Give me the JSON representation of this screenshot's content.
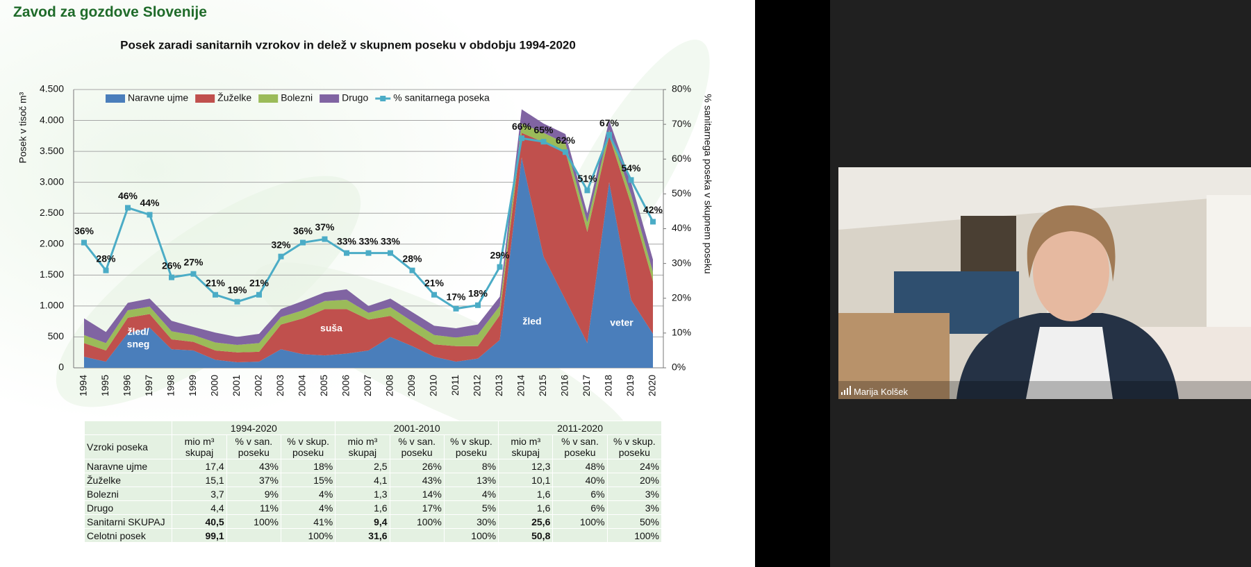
{
  "slide": {
    "header": "Zavod za gozdove Slovenije",
    "table": {
      "groups": [
        "1994-2020",
        "2001-2010",
        "2011-2020"
      ],
      "columns": [
        "Vzroki poseka",
        "mio m³ skupaj",
        "% v san. poseku",
        "% v skup. poseku"
      ],
      "rows": [
        [
          "Naravne ujme",
          "17,4",
          "43%",
          "18%",
          "2,5",
          "26%",
          "8%",
          "12,3",
          "48%",
          "24%"
        ],
        [
          "Žuželke",
          "15,1",
          "37%",
          "15%",
          "4,1",
          "43%",
          "13%",
          "10,1",
          "40%",
          "20%"
        ],
        [
          "Bolezni",
          "3,7",
          "9%",
          "4%",
          "1,3",
          "14%",
          "4%",
          "1,6",
          "6%",
          "3%"
        ],
        [
          "Drugo",
          "4,4",
          "11%",
          "4%",
          "1,6",
          "17%",
          "5%",
          "1,6",
          "6%",
          "3%"
        ],
        [
          "Sanitarni SKUPAJ",
          "40,5",
          "100%",
          "41%",
          "9,4",
          "100%",
          "30%",
          "25,6",
          "100%",
          "50%"
        ],
        [
          "Celotni posek",
          "99,1",
          null,
          "100%",
          "31,6",
          null,
          "100%",
          "50,8",
          null,
          "100%"
        ]
      ]
    }
  },
  "participant": {
    "name": "Marija Kolšek"
  },
  "chart_data": {
    "type": "area",
    "stacked": true,
    "title": "Posek zaradi sanitarnih vzrokov in delež v skupnem poseku v obdobju 1994-2020",
    "y_label": "Posek v tisoč m³",
    "y2_label": "% sanitarnega poseka v skupnem poseku",
    "categories": [
      "1994",
      "1995",
      "1996",
      "1997",
      "1998",
      "1999",
      "2000",
      "2001",
      "2002",
      "2003",
      "2004",
      "2005",
      "2006",
      "2007",
      "2008",
      "2009",
      "2010",
      "2011",
      "2012",
      "2013",
      "2014",
      "2015",
      "2016",
      "2017",
      "2018",
      "2019",
      "2020"
    ],
    "series": [
      {
        "name": "Naravne ujme",
        "color": "#4a7ebb",
        "values": [
          180,
          100,
          560,
          650,
          300,
          280,
          130,
          90,
          100,
          300,
          220,
          200,
          230,
          280,
          500,
          350,
          180,
          100,
          150,
          450,
          3400,
          1800,
          1100,
          400,
          3000,
          1100,
          550
        ]
      },
      {
        "name": "Žuželke",
        "color": "#c0504d",
        "values": [
          220,
          180,
          250,
          220,
          160,
          140,
          150,
          160,
          160,
          400,
          580,
          750,
          720,
          500,
          340,
          250,
          200,
          250,
          200,
          400,
          400,
          1850,
          2400,
          1800,
          750,
          1550,
          850
        ]
      },
      {
        "name": "Bolezni",
        "color": "#9bbb59",
        "values": [
          130,
          120,
          120,
          120,
          130,
          110,
          130,
          120,
          140,
          120,
          130,
          130,
          150,
          110,
          140,
          150,
          150,
          140,
          190,
          150,
          150,
          150,
          130,
          150,
          100,
          150,
          150
        ]
      },
      {
        "name": "Drugo",
        "color": "#8064a2",
        "values": [
          270,
          180,
          120,
          130,
          170,
          130,
          160,
          130,
          150,
          130,
          150,
          140,
          170,
          110,
          140,
          150,
          150,
          150,
          160,
          150,
          230,
          150,
          150,
          150,
          150,
          200,
          200
        ]
      },
      {
        "name": "% sanitarnega poseka",
        "color": "#4bacc6",
        "type": "line",
        "axis": "y2",
        "values": [
          36,
          28,
          46,
          44,
          26,
          27,
          21,
          19,
          21,
          32,
          36,
          37,
          33,
          33,
          33,
          28,
          21,
          17,
          18,
          29,
          66,
          65,
          62,
          51,
          67,
          54,
          42
        ],
        "value_labels": [
          "36%",
          "28%",
          "46%",
          "44%",
          "26%",
          "27%",
          "21%",
          "19%",
          "21%",
          "32%",
          "36%",
          "37%",
          "33%",
          "33%",
          "33%",
          "28%",
          "21%",
          "17%",
          "18%",
          "29%",
          "66%",
          "65%",
          "62%",
          "51%",
          "67%",
          "54%",
          "42%"
        ]
      }
    ],
    "ylim": [
      0,
      4500
    ],
    "yticks": [
      0,
      500,
      {
        "value": 1000,
        "label": "1.000"
      },
      {
        "value": 1500,
        "label": "1.500"
      },
      {
        "value": 2000,
        "label": "2.000"
      },
      {
        "value": 2500,
        "label": "2.500"
      },
      {
        "value": 3000,
        "label": "3.000"
      },
      {
        "value": 3500,
        "label": "3.500"
      },
      {
        "value": 4000,
        "label": "4.000"
      },
      {
        "value": 4500,
        "label": "4.500"
      }
    ],
    "y2lim": [
      0,
      80
    ],
    "y2ticks": [
      {
        "value": 0,
        "label": "0%"
      },
      {
        "value": 10,
        "label": "10%"
      },
      {
        "value": 20,
        "label": "20%"
      },
      {
        "value": 30,
        "label": "30%"
      },
      {
        "value": 40,
        "label": "40%"
      },
      {
        "value": 50,
        "label": "50%"
      },
      {
        "value": 60,
        "label": "60%"
      },
      {
        "value": 70,
        "label": "70%"
      },
      {
        "value": 80,
        "label": "80%"
      }
    ],
    "grid": true,
    "legend": "upper left",
    "annotations": [
      "žled/",
      "sneg",
      "suša",
      "žled",
      "veter"
    ]
  }
}
